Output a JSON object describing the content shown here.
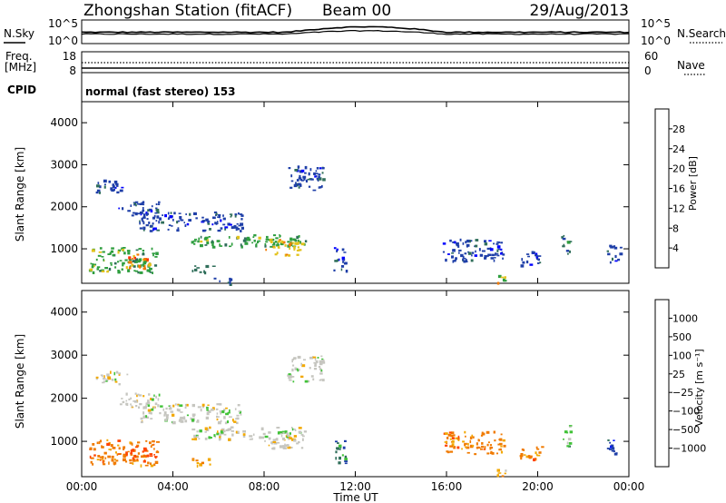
{
  "header": {
    "station": "Zhongshan Station (fitACF)",
    "beam": "Beam 00",
    "date": "29/Aug/2013"
  },
  "noise_panel": {
    "left_label": "N.Sky",
    "left_top": "10^5",
    "left_bottom": "10^0",
    "right_label": "N.Search",
    "right_top": "10^5",
    "right_bottom": "10^0"
  },
  "freq_panel": {
    "left_label": "Freq.",
    "left_unit": "[MHz]",
    "left_top": "18",
    "left_bottom": "8",
    "right_label": "Nave",
    "right_top": "60",
    "right_bottom": "0"
  },
  "cpid_panel": {
    "label": "CPID",
    "text": "normal (fast stereo) 153"
  },
  "colors": {
    "power": [
      "#0000ff",
      "#1f3fa8",
      "#2f6e5a",
      "#2f9e3f",
      "#e3c21a",
      "#f07a00",
      "#ff3300",
      "#d90000"
    ],
    "velocity": [
      "#0015ff",
      "#1f3fa8",
      "#2f6e5a",
      "#41c238",
      "#c6c6c0",
      "#f2a800",
      "#f07a00",
      "#ff4400",
      "#d90000"
    ],
    "ground_scatter": "#c4c4b8"
  },
  "chart_data": [
    {
      "type": "heatmap",
      "title": "",
      "quantity": "Power",
      "ylabel": "Slant Range [km]",
      "ylim": [
        180,
        4500
      ],
      "yticks": [
        "1000",
        "2000",
        "3000",
        "4000"
      ],
      "colorbar": {
        "label": "Power [dB]",
        "range": [
          0,
          32
        ],
        "ticks": [
          "4",
          "8",
          "12",
          "16",
          "20",
          "24",
          "28"
        ]
      },
      "regions": [
        {
          "t": [
            0.3,
            3.3
          ],
          "r": [
            450,
            1050
          ],
          "level": 3
        },
        {
          "t": [
            2.0,
            3.0
          ],
          "r": [
            550,
            900
          ],
          "level": 5
        },
        {
          "t": [
            0.6,
            2.0
          ],
          "r": [
            2350,
            2650
          ],
          "level": 1
        },
        {
          "t": [
            1.6,
            3.4
          ],
          "r": [
            1800,
            2150
          ],
          "level": 1
        },
        {
          "t": [
            2.5,
            7.0
          ],
          "r": [
            1450,
            1900
          ],
          "level": 1
        },
        {
          "t": [
            4.8,
            9.8
          ],
          "r": [
            1050,
            1350
          ],
          "level": 3
        },
        {
          "t": [
            8.0,
            9.7
          ],
          "r": [
            850,
            1250
          ],
          "level": 4
        },
        {
          "t": [
            9.0,
            10.6
          ],
          "r": [
            2400,
            3000
          ],
          "level": 1
        },
        {
          "t": [
            4.8,
            5.8
          ],
          "r": [
            460,
            620
          ],
          "level": 2
        },
        {
          "t": [
            5.5,
            6.5
          ],
          "r": [
            180,
            320
          ],
          "level": 1
        },
        {
          "t": [
            11.0,
            11.6
          ],
          "r": [
            500,
            1050
          ],
          "level": 1
        },
        {
          "t": [
            15.8,
            18.5
          ],
          "r": [
            700,
            1250
          ],
          "level": 1
        },
        {
          "t": [
            19.2,
            20.2
          ],
          "r": [
            600,
            950
          ],
          "level": 1
        },
        {
          "t": [
            21.0,
            21.4
          ],
          "r": [
            900,
            1400
          ],
          "level": 2
        },
        {
          "t": [
            23.0,
            23.6
          ],
          "r": [
            700,
            1100
          ],
          "level": 1
        },
        {
          "t": [
            18.2,
            18.6
          ],
          "r": [
            200,
            400
          ],
          "level": 4
        }
      ]
    },
    {
      "type": "heatmap",
      "title": "",
      "quantity": "Velocity",
      "xlabel": "Time UT",
      "ylabel": "Slant Range [km]",
      "ylim": [
        180,
        4500
      ],
      "yticks": [
        "1000",
        "2000",
        "3000",
        "4000"
      ],
      "xticks": [
        "00:00",
        "04:00",
        "08:00",
        "12:00",
        "16:00",
        "20:00",
        "00:00"
      ],
      "colorbar": {
        "label": "Velocity [m s⁻¹]",
        "ticks": [
          "1000",
          "500",
          "100",
          "25",
          "−25",
          "−100",
          "−500",
          "−1000"
        ]
      },
      "regions": [
        {
          "t": [
            0.3,
            3.3
          ],
          "r": [
            450,
            1050
          ],
          "level": 6
        },
        {
          "t": [
            2.0,
            3.0
          ],
          "r": [
            550,
            900
          ],
          "level": 7
        },
        {
          "t": [
            0.6,
            2.0
          ],
          "r": [
            2350,
            2650
          ],
          "level": 4
        },
        {
          "t": [
            1.6,
            3.4
          ],
          "r": [
            1800,
            2150
          ],
          "level": 4
        },
        {
          "t": [
            2.5,
            7.0
          ],
          "r": [
            1450,
            1900
          ],
          "level": 4
        },
        {
          "t": [
            4.8,
            9.8
          ],
          "r": [
            1050,
            1350
          ],
          "level": 4
        },
        {
          "t": [
            8.0,
            9.7
          ],
          "r": [
            850,
            1250
          ],
          "level": 4
        },
        {
          "t": [
            9.0,
            10.6
          ],
          "r": [
            2400,
            3000
          ],
          "level": 4
        },
        {
          "t": [
            4.8,
            5.8
          ],
          "r": [
            460,
            620
          ],
          "level": 5
        },
        {
          "t": [
            11.0,
            11.6
          ],
          "r": [
            500,
            1050
          ],
          "level": 2
        },
        {
          "t": [
            15.8,
            18.5
          ],
          "r": [
            700,
            1250
          ],
          "level": 6
        },
        {
          "t": [
            19.2,
            20.2
          ],
          "r": [
            600,
            950
          ],
          "level": 6
        },
        {
          "t": [
            21.0,
            21.4
          ],
          "r": [
            900,
            1400
          ],
          "level": 3
        },
        {
          "t": [
            23.0,
            23.6
          ],
          "r": [
            700,
            1100
          ],
          "level": 1
        },
        {
          "t": [
            18.2,
            18.6
          ],
          "r": [
            200,
            400
          ],
          "level": 5
        }
      ]
    }
  ]
}
